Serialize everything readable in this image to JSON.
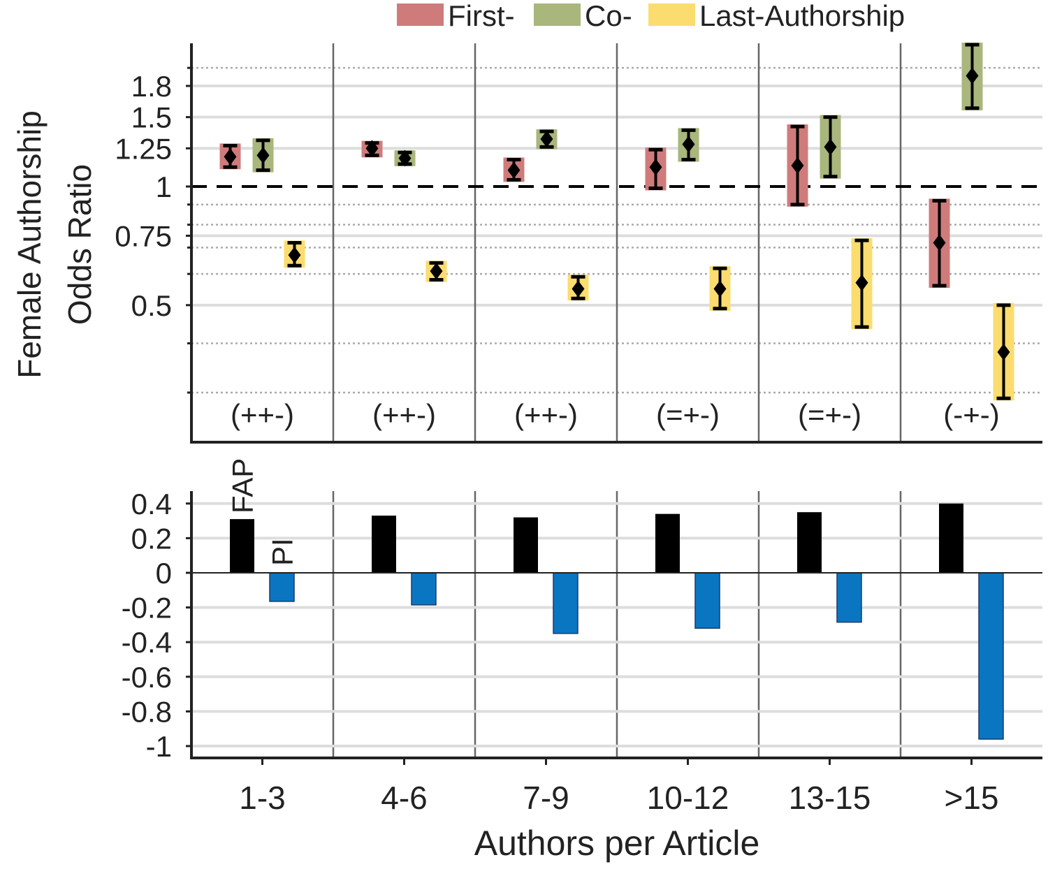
{
  "chart_data": [
    {
      "type": "errorbar",
      "ylabel": [
        "Female Authorship",
        "Odds Ratio"
      ],
      "yscale": "log",
      "ylim": [
        0.224,
        2.31
      ],
      "yticks": [
        0.5,
        0.75,
        1,
        1.25,
        1.5,
        1.8
      ],
      "ytick_labels": [
        "0.5",
        "0.75",
        "1",
        "1.25",
        "1.5",
        "1.8"
      ],
      "dotted_gridlines": [
        0.3,
        0.4,
        0.6,
        0.7,
        0.8,
        0.9,
        2.0
      ],
      "reference_line": 1,
      "legend": {
        "position": "top",
        "entries": [
          "First-",
          "Co-",
          "Last-Authorship"
        ]
      },
      "categories": [
        "1-3",
        "4-6",
        "7-9",
        "10-12",
        "13-15",
        ">15"
      ],
      "annotations": [
        "(++-)",
        "(++-)",
        "(++-)",
        "(=+-)",
        "(=+-)",
        "(-+-)"
      ],
      "series": [
        {
          "name": "First-",
          "color": "#cf7b7b",
          "values": [
            1.19,
            1.25,
            1.1,
            1.12,
            1.13,
            0.72
          ],
          "ci_low": [
            1.12,
            1.2,
            1.04,
            0.99,
            0.9,
            0.56
          ],
          "ci_high": [
            1.27,
            1.29,
            1.17,
            1.24,
            1.42,
            0.92
          ]
        },
        {
          "name": "Co-",
          "color": "#a9b67c",
          "values": [
            1.2,
            1.18,
            1.32,
            1.28,
            1.26,
            1.91
          ],
          "ci_low": [
            1.1,
            1.14,
            1.26,
            1.17,
            1.06,
            1.58
          ],
          "ci_high": [
            1.31,
            1.22,
            1.38,
            1.39,
            1.5,
            2.29
          ]
        },
        {
          "name": "Last-Authorship",
          "color": "#fbdc6e",
          "values": [
            0.67,
            0.61,
            0.55,
            0.55,
            0.57,
            0.38
          ],
          "ci_low": [
            0.63,
            0.58,
            0.52,
            0.49,
            0.44,
            0.29
          ],
          "ci_high": [
            0.72,
            0.64,
            0.59,
            0.62,
            0.73,
            0.5
          ]
        }
      ]
    },
    {
      "type": "bar",
      "xlabel": "Authors per Article",
      "categories": [
        "1-3",
        "4-6",
        "7-9",
        "10-12",
        "13-15",
        ">15"
      ],
      "ylim": [
        -1.05,
        0.47
      ],
      "yticks": [
        -1,
        -0.8,
        -0.6,
        -0.4,
        -0.2,
        0,
        0.2,
        0.4
      ],
      "ytick_labels": [
        "-1",
        "-0.8",
        "-0.6",
        "-0.4",
        "-0.2",
        "0",
        "0.2",
        "0.4"
      ],
      "series": [
        {
          "name": "FAP",
          "color": "#000000",
          "values": [
            0.31,
            0.33,
            0.32,
            0.34,
            0.35,
            0.4
          ]
        },
        {
          "name": "PI",
          "color": "#0a76c2",
          "values": [
            -0.165,
            -0.185,
            -0.35,
            -0.32,
            -0.285,
            -0.96
          ]
        }
      ]
    }
  ]
}
